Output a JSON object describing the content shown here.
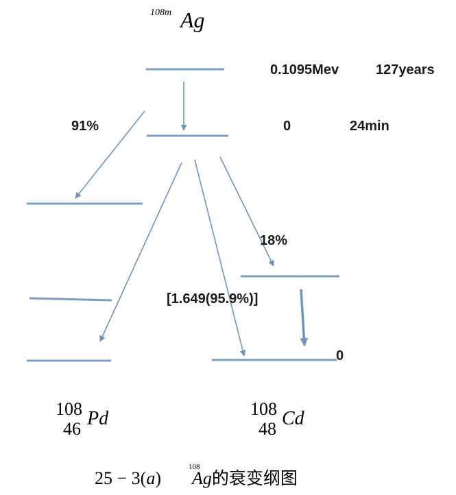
{
  "parent": {
    "mass_number": "108m",
    "symbol": "Ag"
  },
  "levels": {
    "top": {
      "energy": "0.1095Mev",
      "half_life": "127years"
    },
    "ground": {
      "energy": "0",
      "half_life": "24min"
    },
    "cd_ground": {
      "energy": "0"
    }
  },
  "branches": {
    "ec_pd": "91%",
    "beta_cd_excited": "18%",
    "beta_cd_ground": "[1.649(95.9%)]"
  },
  "daughters": {
    "pd": {
      "mass": "108",
      "atomic": "46",
      "symbol": "Pd"
    },
    "cd": {
      "mass": "108",
      "atomic": "48",
      "symbol": "Cd"
    }
  },
  "caption": {
    "prefix": "25 − 3(",
    "a": "a",
    "close": ")",
    "sup": "108",
    "symbol": "Ag",
    "suffix": "的衰变纲图"
  },
  "colors": {
    "line": "#7b9cc3",
    "arrow": "#6f93bf",
    "text": "#1a1a1a"
  }
}
